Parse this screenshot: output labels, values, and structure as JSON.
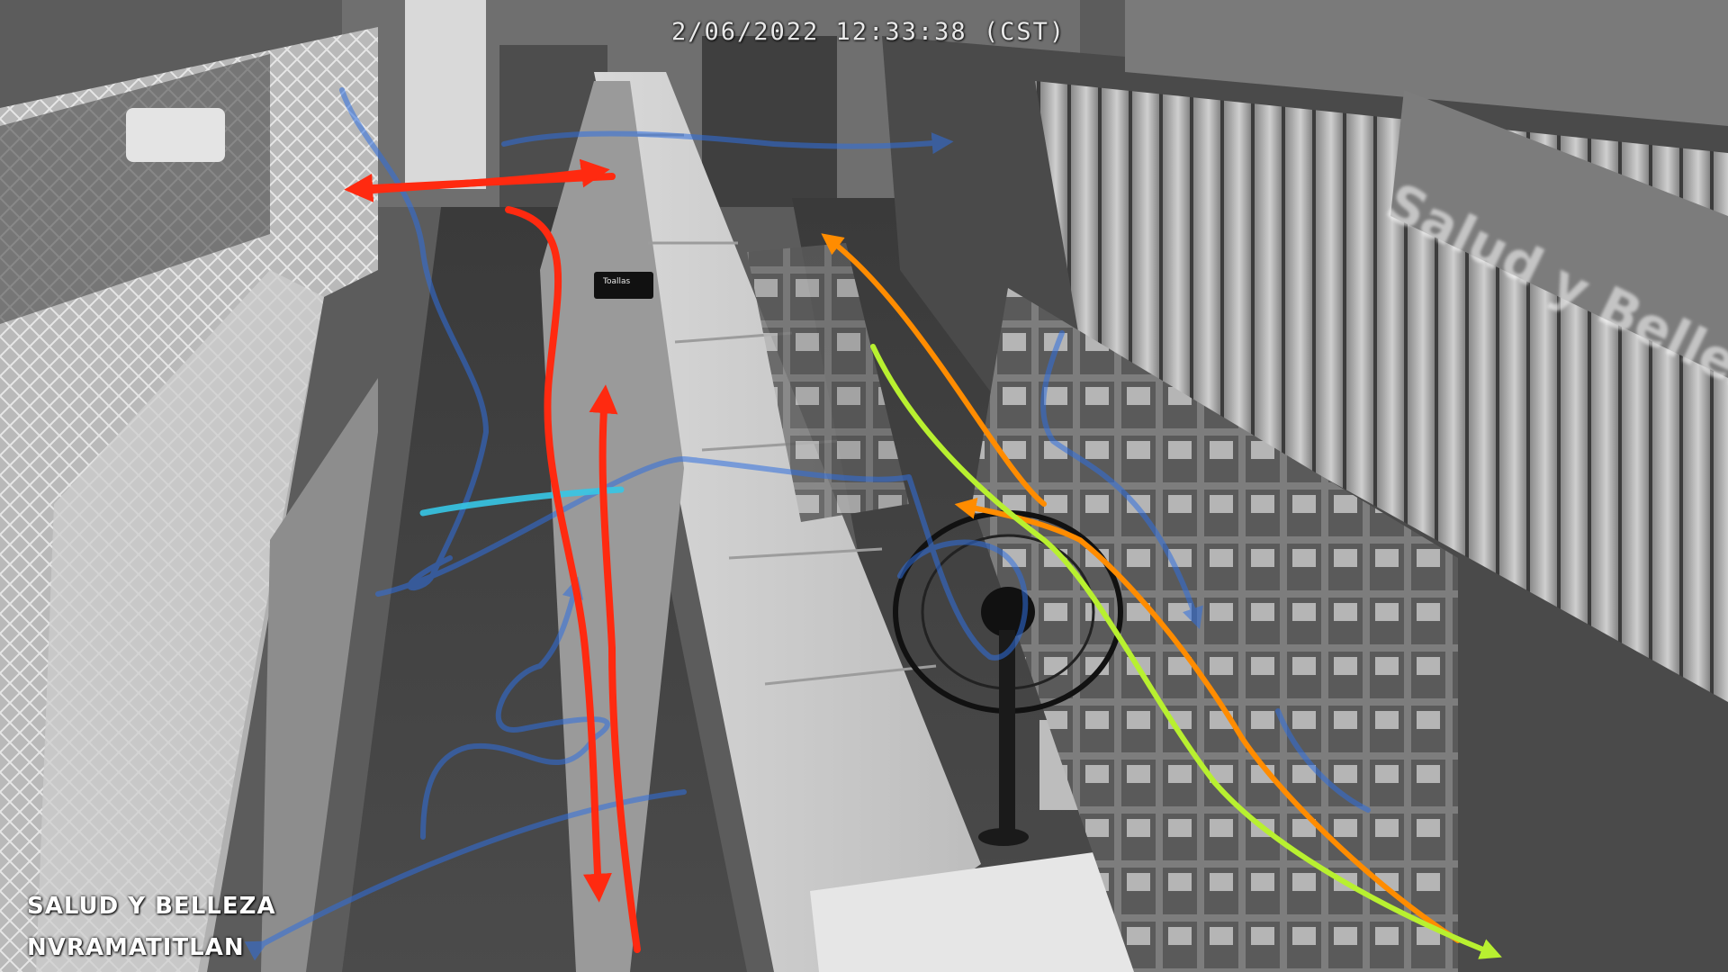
{
  "camera": {
    "timestamp": "2/06/2022 12:33:38 (CST)",
    "location_line1": "SALUD Y BELLEZA",
    "location_line2": "NVRAMATITLAN"
  },
  "scene": {
    "hanging_sign_text": "Salud y Belleza",
    "aisle_tag_text": "Toallas"
  },
  "path_colors": {
    "red": "#ff2a10",
    "blue": "#2f6fe0",
    "cyan": "#36c6e6",
    "orange": "#ff8c00",
    "yellow_green": "#b8f030"
  }
}
